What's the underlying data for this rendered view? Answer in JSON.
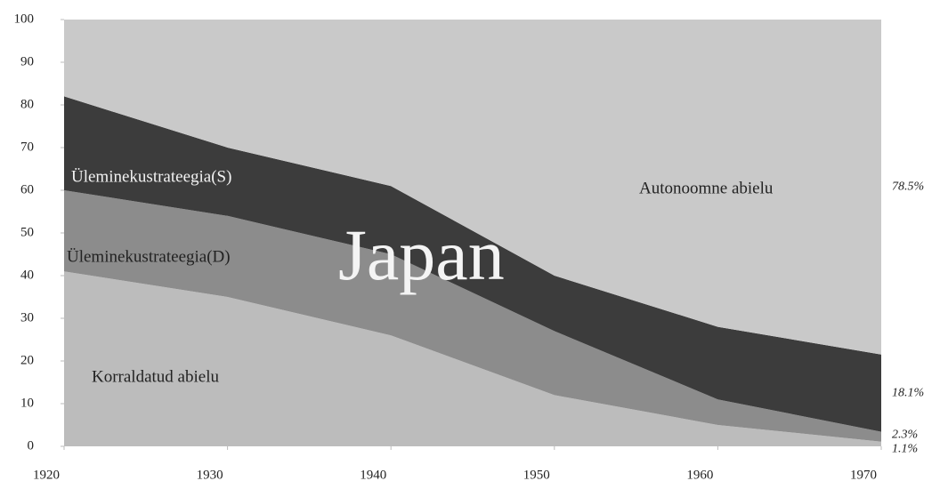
{
  "chart_data": {
    "type": "stacked_area",
    "annotations": [
      "Japan"
    ],
    "x": [
      1920,
      1930,
      1940,
      1950,
      1960,
      1970
    ],
    "xlim": [
      1920,
      1970
    ],
    "xticks": [
      1920,
      1930,
      1940,
      1950,
      1960,
      1970
    ],
    "ylim": [
      0,
      100
    ],
    "yticks": [
      0,
      10,
      20,
      30,
      40,
      50,
      60,
      70,
      80,
      90,
      100
    ],
    "series": [
      {
        "name": "Korraldatud abielu",
        "color": "#bcbcbc",
        "values": [
          41,
          35,
          26,
          12,
          5,
          1.1
        ],
        "value_labels": [
          null,
          null,
          null,
          null,
          null,
          "1.1%"
        ]
      },
      {
        "name": "Üleminekustrateegia(D)",
        "color": "#8c8c8c",
        "values": [
          19,
          19,
          19,
          15,
          6,
          2.3
        ],
        "value_labels": [
          null,
          null,
          null,
          null,
          null,
          "2.3%"
        ]
      },
      {
        "name": "Üleminekustrateegia(S)",
        "color": "#3c3c3c",
        "values": [
          22,
          16,
          16,
          13,
          17,
          18.1
        ],
        "value_labels": [
          null,
          null,
          null,
          null,
          null,
          "18.1%"
        ]
      },
      {
        "name": "Autonoomne abielu",
        "color": "#c9c9c9",
        "values": [
          18,
          30,
          39,
          60,
          72,
          78.5
        ],
        "value_labels": [
          null,
          null,
          null,
          null,
          null,
          "78.5%"
        ]
      }
    ]
  }
}
